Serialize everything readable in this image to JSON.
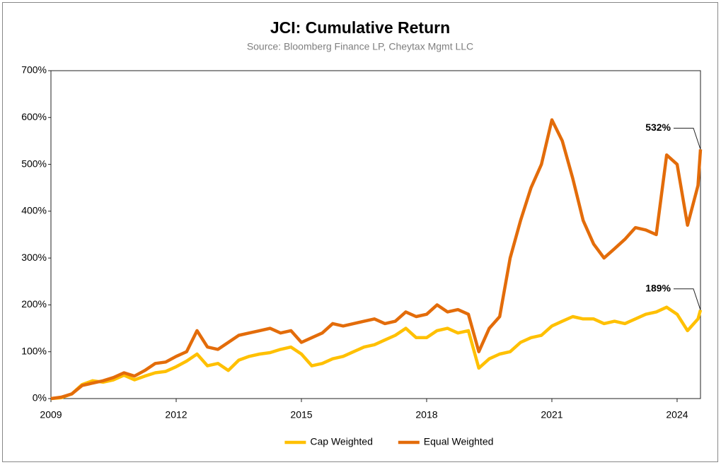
{
  "chart_data": {
    "type": "line",
    "title": "JCI: Cumulative Return",
    "subtitle": "Source: Bloomberg Finance LP, Cheytax Mgmt LLC",
    "x": [
      2009,
      2009.25,
      2009.5,
      2009.75,
      2010,
      2010.25,
      2010.5,
      2010.75,
      2011,
      2011.25,
      2011.5,
      2011.75,
      2012,
      2012.25,
      2012.5,
      2012.75,
      2013,
      2013.25,
      2013.5,
      2013.75,
      2014,
      2014.25,
      2014.5,
      2014.75,
      2015,
      2015.25,
      2015.5,
      2015.75,
      2016,
      2016.25,
      2016.5,
      2016.75,
      2017,
      2017.25,
      2017.5,
      2017.75,
      2018,
      2018.25,
      2018.5,
      2018.75,
      2019,
      2019.25,
      2019.5,
      2019.75,
      2020,
      2020.25,
      2020.5,
      2020.75,
      2021,
      2021.25,
      2021.5,
      2021.75,
      2022,
      2022.25,
      2022.5,
      2022.75,
      2023,
      2023.25,
      2023.5,
      2023.75,
      2024,
      2024.25,
      2024.5,
      2024.56
    ],
    "series": [
      {
        "name": "Cap Weighted",
        "color": "#ffc000",
        "end_label": "189%",
        "values": [
          0,
          2,
          10,
          30,
          38,
          35,
          40,
          50,
          40,
          48,
          55,
          58,
          68,
          80,
          95,
          70,
          75,
          60,
          82,
          90,
          95,
          98,
          105,
          110,
          95,
          70,
          75,
          85,
          90,
          100,
          110,
          115,
          125,
          135,
          150,
          130,
          130,
          145,
          150,
          140,
          145,
          65,
          85,
          95,
          100,
          120,
          130,
          135,
          155,
          165,
          175,
          170,
          170,
          160,
          165,
          160,
          170,
          180,
          185,
          195,
          180,
          145,
          170,
          189
        ]
      },
      {
        "name": "Equal Weighted",
        "color": "#e36c0a",
        "end_label": "532%",
        "values": [
          0,
          3,
          10,
          28,
          33,
          38,
          45,
          55,
          48,
          60,
          75,
          78,
          90,
          100,
          145,
          110,
          105,
          120,
          135,
          140,
          145,
          150,
          140,
          145,
          120,
          130,
          140,
          160,
          155,
          160,
          165,
          170,
          160,
          165,
          185,
          175,
          180,
          200,
          185,
          190,
          180,
          100,
          150,
          175,
          300,
          380,
          450,
          500,
          595,
          550,
          470,
          380,
          330,
          300,
          320,
          340,
          365,
          360,
          350,
          520,
          500,
          370,
          455,
          532
        ]
      }
    ],
    "xlim": [
      2009,
      2024.56
    ],
    "xticks": [
      2009,
      2012,
      2015,
      2018,
      2021,
      2024
    ],
    "ylim": [
      0,
      700
    ],
    "yticks": [
      {
        "value": 0,
        "label": "0%"
      },
      {
        "value": 100,
        "label": "100%"
      },
      {
        "value": 200,
        "label": "200%"
      },
      {
        "value": 300,
        "label": "300%"
      },
      {
        "value": 400,
        "label": "400%"
      },
      {
        "value": 500,
        "label": "500%"
      },
      {
        "value": 600,
        "label": "600%"
      },
      {
        "value": 700,
        "label": "700%"
      }
    ],
    "legend": "bottom"
  }
}
